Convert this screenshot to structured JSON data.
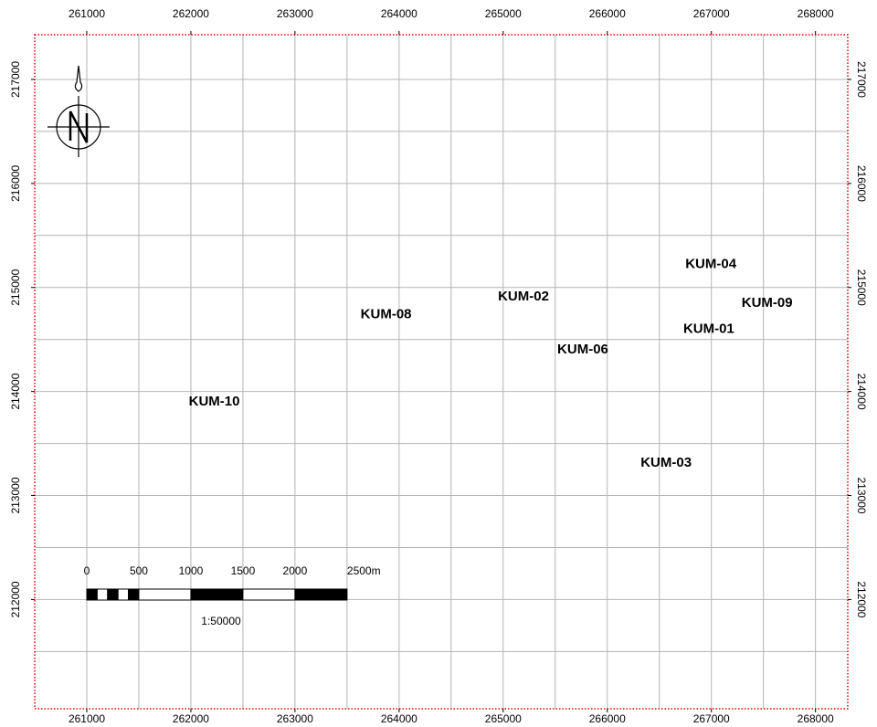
{
  "chart_data": {
    "type": "scatter",
    "xlim": [
      260500,
      268310
    ],
    "ylim": [
      210950,
      217430
    ],
    "xticks": [
      261000,
      262000,
      263000,
      264000,
      265000,
      266000,
      267000,
      268000
    ],
    "yticks": [
      212000,
      213000,
      214000,
      215000,
      216000,
      217000
    ],
    "xgrid": [
      261000,
      261500,
      262000,
      262500,
      263000,
      263500,
      264000,
      264500,
      265000,
      265500,
      266000,
      266500,
      267000,
      267500,
      268000
    ],
    "ygrid": [
      211500,
      212000,
      212500,
      213000,
      213500,
      214000,
      214500,
      215000,
      215500,
      216000,
      216500,
      217000
    ],
    "grid": true,
    "grid_color": "#b4b4b4",
    "frame_color": "#e00000",
    "points": {
      "labels": [
        "KUM-04",
        "KUM-09",
        "KUM-02",
        "KUM-08",
        "KUM-01",
        "KUM-06",
        "KUM-10",
        "KUM-03"
      ],
      "x": [
        266750,
        267290,
        264950,
        263630,
        266730,
        265520,
        261980,
        266320
      ],
      "y": [
        215220,
        214850,
        214910,
        214740,
        214600,
        214400,
        213900,
        213310
      ]
    },
    "scale_bar": {
      "ticks": [
        0,
        500,
        1000,
        1500,
        2000,
        {
          "value": 2500,
          "label": "2500m"
        }
      ],
      "divisions": [
        0,
        100,
        200,
        300,
        400,
        500,
        1000,
        1500,
        2000,
        2500
      ],
      "ratio": "1:50000"
    }
  }
}
